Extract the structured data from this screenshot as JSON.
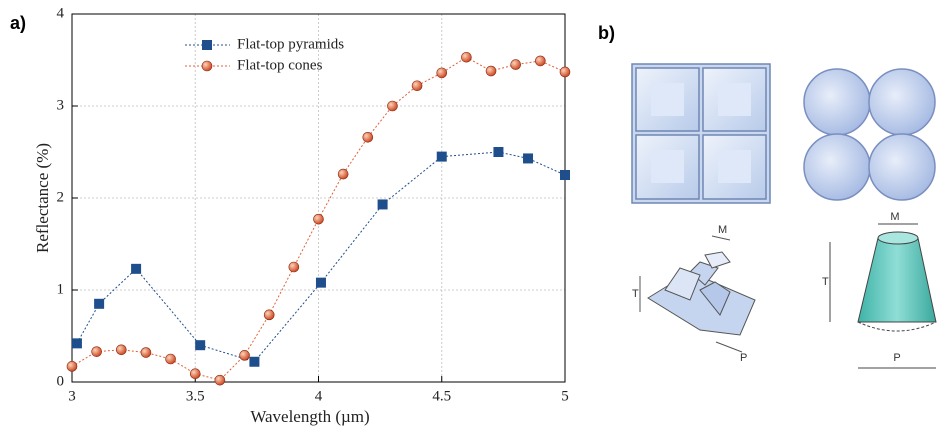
{
  "chart_data": {
    "type": "line",
    "panel_label": "a)",
    "x_label": "Wavelength (µm)",
    "y_label": "Reflectance (%)",
    "xlim": [
      3,
      5
    ],
    "xticks": [
      3,
      3.5,
      4,
      4.5,
      5
    ],
    "ylim": [
      0,
      4
    ],
    "yticks": [
      0,
      1,
      2,
      3,
      4
    ],
    "grid": true,
    "legend": "top-center",
    "series": [
      {
        "name": "Flat-top pyramids",
        "color": "#1f4e8c",
        "marker": "square",
        "x": [
          3.02,
          3.11,
          3.26,
          3.52,
          3.74,
          4.01,
          4.26,
          4.5,
          4.73,
          4.85,
          5.0
        ],
        "values": [
          0.42,
          0.85,
          1.23,
          0.4,
          0.22,
          1.08,
          1.93,
          2.45,
          2.5,
          2.43,
          2.25
        ]
      },
      {
        "name": "Flat-top cones",
        "color": "#e0603a",
        "marker": "circle",
        "x": [
          3.0,
          3.1,
          3.2,
          3.3,
          3.4,
          3.5,
          3.6,
          3.7,
          3.8,
          3.9,
          4.0,
          4.1,
          4.2,
          4.3,
          4.4,
          4.5,
          4.6,
          4.7,
          4.8,
          4.9,
          5.0
        ],
        "values": [
          0.17,
          0.33,
          0.35,
          0.32,
          0.25,
          0.09,
          0.02,
          0.29,
          0.73,
          1.25,
          1.77,
          2.26,
          2.66,
          3.0,
          3.22,
          3.36,
          3.53,
          3.38,
          3.45,
          3.49,
          3.37
        ]
      }
    ]
  },
  "panel_b": {
    "panel_label": "b)",
    "pyramid_labels": {
      "top": "M",
      "height": "T",
      "base": "P"
    },
    "cone_labels": {
      "top": "M",
      "height": "T",
      "base": "P"
    }
  }
}
